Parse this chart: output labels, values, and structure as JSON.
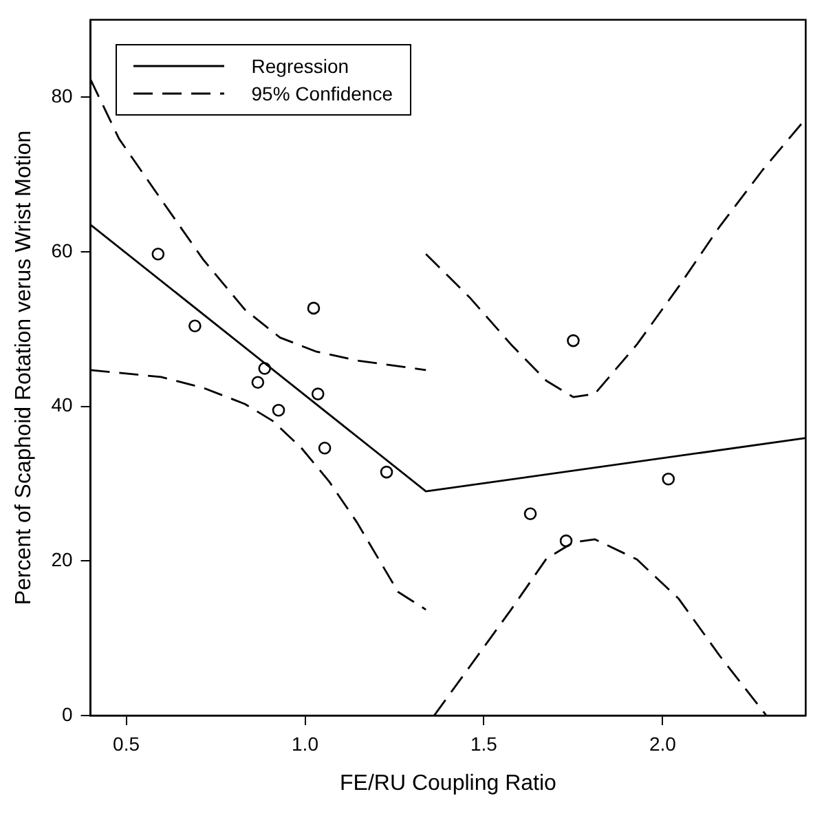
{
  "chart_data": {
    "type": "scatter",
    "xlabel": "FE/RU Coupling Ratio",
    "ylabel": "Percent of Scaphoid Rotation verus Wrist Motion",
    "xlim": [
      0.4,
      2.4
    ],
    "xticks": [
      0.5,
      {
        "value": 1,
        "label": "1.0"
      },
      1.5,
      {
        "value": 2,
        "label": "2.0"
      }
    ],
    "ylim": [
      0,
      90
    ],
    "yticks": [
      0,
      20,
      40,
      60,
      80
    ],
    "grid": false,
    "legend": "top left",
    "series": [
      {
        "marker": "circle",
        "color": "#000000",
        "x": [
          0.589,
          0.692,
          0.868,
          0.887,
          0.926,
          1.024,
          1.036,
          1.055,
          1.228,
          1.63,
          1.73,
          2.016,
          1.75
        ],
        "values": [
          59.7,
          50.4,
          43.1,
          44.9,
          39.5,
          52.7,
          41.6,
          34.6,
          31.5,
          26.1,
          22.6,
          30.6,
          48.5
        ]
      },
      {
        "type": "line",
        "name": "Regression",
        "line_style": "solid",
        "marker": "none",
        "color": "#000000",
        "x": [
          0.4,
          1.338,
          2.4
        ],
        "values": [
          63.5,
          29.0,
          35.9
        ]
      },
      {
        "type": "line",
        "name": "95% Confidence",
        "line_style": "dashed",
        "marker": "none",
        "color": "#000000",
        "x": [
          0.4,
          0.48,
          0.597,
          0.715,
          0.832,
          0.93,
          1.03,
          1.15,
          1.338,
          null,
          0.4,
          0.597,
          0.715,
          0.832,
          0.91,
          0.99,
          1.067,
          1.145,
          1.26,
          1.338,
          null,
          1.338,
          1.46,
          1.576,
          1.675,
          1.75,
          1.81,
          1.928,
          2.045,
          2.16,
          2.28,
          2.4,
          null,
          1.361,
          1.46,
          1.576,
          1.675,
          1.75,
          1.81,
          1.928,
          2.045,
          2.16,
          2.29
        ],
        "values": [
          82.3,
          74.6,
          66.8,
          59,
          52.5,
          48.9,
          47.1,
          45.9,
          44.7,
          null,
          44.7,
          43.8,
          42.4,
          40.3,
          38.1,
          34.6,
          30.3,
          25,
          16,
          13.7,
          null,
          59.7,
          54.1,
          48,
          43.3,
          41.2,
          41.6,
          48,
          55.5,
          63.3,
          70.6,
          77.2,
          null,
          0,
          6.3,
          13.7,
          20.3,
          22.4,
          22.8,
          20.2,
          15.1,
          7.7,
          0
        ]
      }
    ]
  }
}
